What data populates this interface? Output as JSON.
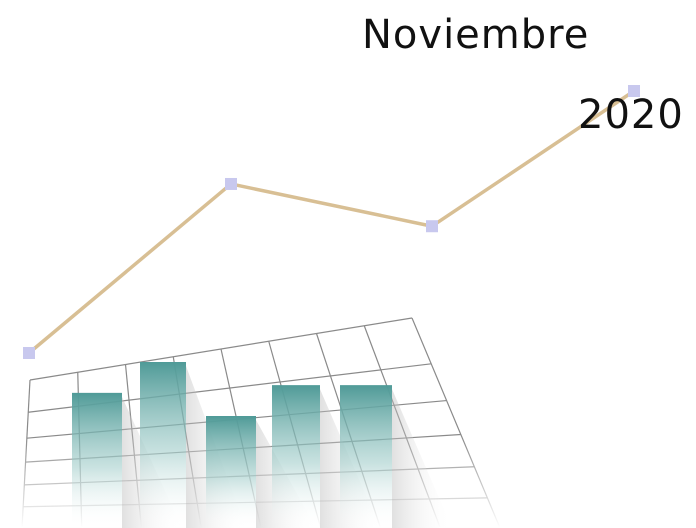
{
  "title": {
    "month": "Noviembre",
    "year": "2020"
  },
  "colors": {
    "background": "#ffffff",
    "line": "#d8bf94",
    "marker": "#c8c8ee",
    "grid": "#8a8a8a",
    "bar_top": "#4f9a97",
    "text": "#111111"
  },
  "line_series": {
    "values": [
      1,
      5,
      4,
      7.2
    ]
  },
  "bar_series": {
    "values": [
      5,
      7,
      3.5,
      5.5,
      5.5
    ]
  }
}
